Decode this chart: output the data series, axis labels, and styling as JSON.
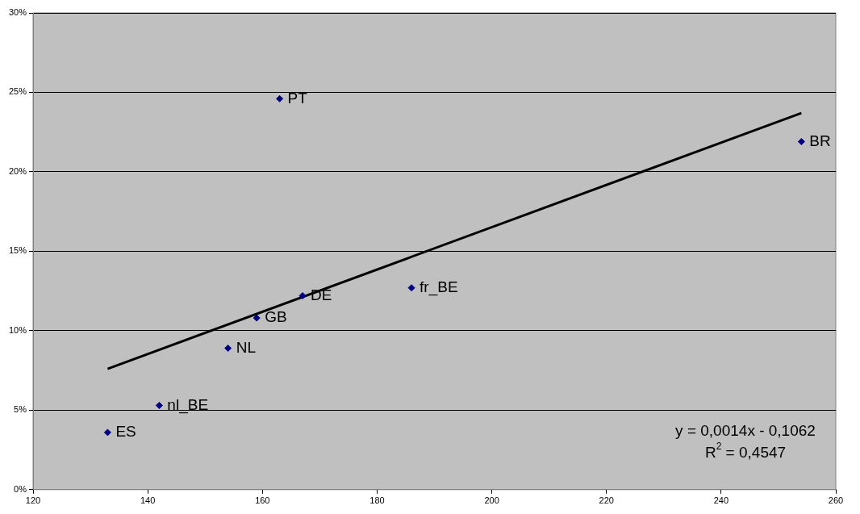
{
  "chart_data": {
    "type": "scatter",
    "marker": "diamond",
    "grid": "y",
    "xlim": [
      120,
      260
    ],
    "xticks": [
      120,
      140,
      160,
      180,
      200,
      220,
      240,
      260
    ],
    "ylim": [
      0,
      30
    ],
    "yticks": [
      {
        "value": 0,
        "label": "0%"
      },
      {
        "value": 5,
        "label": "5%"
      },
      {
        "value": 10,
        "label": "10%"
      },
      {
        "value": 15,
        "label": "15%"
      },
      {
        "value": 20,
        "label": "20%"
      },
      {
        "value": 25,
        "label": "25%"
      },
      {
        "value": 30,
        "label": "30%"
      }
    ],
    "series": [
      {
        "color": "#000080",
        "x": [
          133,
          142,
          154,
          159,
          167,
          163,
          186,
          254
        ],
        "values": [
          3.6,
          5.3,
          8.9,
          10.8,
          12.2,
          24.6,
          12.7,
          21.9
        ]
      },
      {
        "type": "line",
        "color": "#000000",
        "marker": "none",
        "x": [
          133,
          254
        ],
        "values": [
          7.6,
          23.7
        ]
      }
    ],
    "annotations": [
      {
        "text": "ES",
        "x": 133,
        "y": 3.6
      },
      {
        "text": "nl_BE",
        "x": 142,
        "y": 5.3
      },
      {
        "text": "NL",
        "x": 154,
        "y": 8.9
      },
      {
        "text": "GB",
        "x": 159,
        "y": 10.8
      },
      {
        "text": "DE",
        "x": 167,
        "y": 12.2
      },
      {
        "text": "PT",
        "x": 163,
        "y": 24.6
      },
      {
        "text": "fr_BE",
        "x": 186,
        "y": 12.7
      },
      {
        "text": "BR",
        "x": 254,
        "y": 21.9
      },
      "y = 0,0014x - 0,1062",
      "R$^{2}$ = 0,4547"
    ]
  }
}
